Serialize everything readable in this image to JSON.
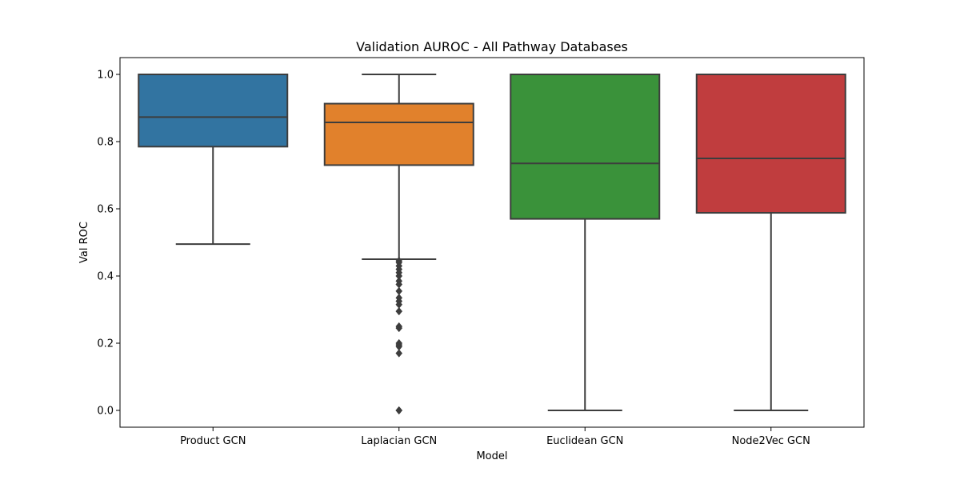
{
  "chart_data": {
    "type": "box",
    "title": "Validation AUROC - All Pathway Databases",
    "xlabel": "Model",
    "ylabel": "Val ROC",
    "ylim": [
      -0.05,
      1.05
    ],
    "yticks": [
      0.0,
      0.2,
      0.4,
      0.6,
      0.8,
      1.0
    ],
    "ytick_labels": [
      "0.0",
      "0.2",
      "0.4",
      "0.6",
      "0.8",
      "1.0"
    ],
    "grid": false,
    "categories": [
      "Product GCN",
      "Laplacian GCN",
      "Euclidean GCN",
      "Node2Vec GCN"
    ],
    "boxes": [
      {
        "category": "Product GCN",
        "color": "#3274a1",
        "whisker_low": 0.495,
        "q1": 0.785,
        "median": 0.873,
        "q3": 1.0,
        "whisker_high": 1.0,
        "outliers": []
      },
      {
        "category": "Laplacian GCN",
        "color": "#e1812c",
        "whisker_low": 0.45,
        "q1": 0.73,
        "median": 0.857,
        "q3": 0.913,
        "whisker_high": 1.0,
        "outliers": [
          0.445,
          0.44,
          0.43,
          0.42,
          0.41,
          0.4,
          0.385,
          0.375,
          0.355,
          0.335,
          0.325,
          0.315,
          0.295,
          0.25,
          0.245,
          0.2,
          0.195,
          0.19,
          0.17,
          0.0,
          0.0
        ]
      },
      {
        "category": "Euclidean GCN",
        "color": "#3a923a",
        "whisker_low": 0.0,
        "q1": 0.57,
        "median": 0.735,
        "q3": 1.0,
        "whisker_high": 1.0,
        "outliers": []
      },
      {
        "category": "Node2Vec GCN",
        "color": "#c03d3e",
        "whisker_low": 0.0,
        "q1": 0.588,
        "median": 0.75,
        "q3": 1.0,
        "whisker_high": 1.0,
        "outliers": []
      }
    ]
  }
}
